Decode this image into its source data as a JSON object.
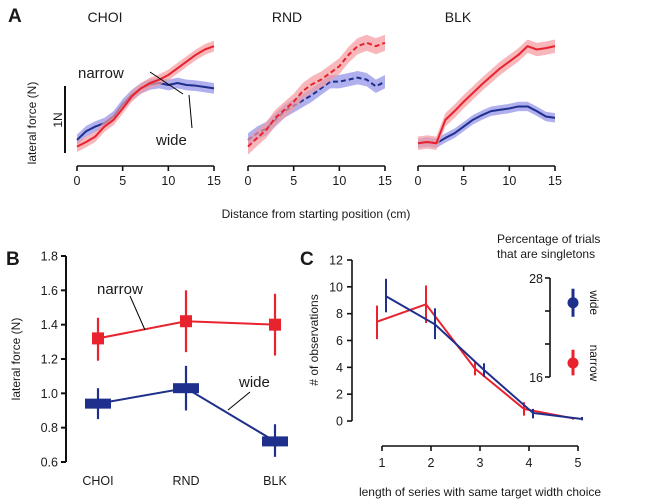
{
  "colors": {
    "narrow": "#e8232e",
    "wide": "#1f2f8c",
    "narrow_band": "#f59a9e",
    "wide_band": "#8f8fe8",
    "axis": "#111111"
  },
  "chart_data": [
    {
      "panel": "A",
      "type": "line",
      "ylabel": "lateral force (N)",
      "xlabel": "Distance from starting position (cm)",
      "scale_bar_label": "1N",
      "scale_bar_value": 1,
      "xlim": [
        0,
        15
      ],
      "xticks": [
        "0",
        "5",
        "10",
        "15"
      ],
      "annotations": [
        "narrow",
        "wide"
      ],
      "subplots": [
        {
          "title": "CHOI",
          "linestyle": "solid",
          "x": [
            0,
            1,
            2,
            3,
            4,
            5,
            6,
            7,
            8,
            9,
            10,
            11,
            12,
            13,
            14,
            15
          ],
          "series": [
            {
              "name": "narrow",
              "values": [
                0.05,
                0.12,
                0.2,
                0.35,
                0.45,
                0.62,
                0.8,
                0.92,
                1.0,
                1.05,
                1.12,
                1.22,
                1.32,
                1.42,
                1.5,
                1.55
              ],
              "band": 0.08
            },
            {
              "name": "wide",
              "values": [
                0.15,
                0.28,
                0.35,
                0.4,
                0.5,
                0.68,
                0.82,
                0.92,
                0.98,
                1.0,
                0.97,
                1.0,
                0.97,
                0.96,
                0.94,
                0.92
              ],
              "band": 0.08
            }
          ]
        },
        {
          "title": "RND",
          "linestyle": "dashed",
          "x": [
            0,
            1,
            2,
            3,
            4,
            5,
            6,
            7,
            8,
            9,
            10,
            11,
            12,
            13,
            14,
            15
          ],
          "series": [
            {
              "name": "narrow",
              "values": [
                0.05,
                0.18,
                0.3,
                0.48,
                0.6,
                0.72,
                0.88,
                0.98,
                1.05,
                1.15,
                1.25,
                1.42,
                1.55,
                1.6,
                1.55,
                1.6
              ],
              "band": 0.12
            },
            {
              "name": "wide",
              "values": [
                0.15,
                0.25,
                0.32,
                0.45,
                0.58,
                0.66,
                0.74,
                0.82,
                0.92,
                1.02,
                1.02,
                1.05,
                1.08,
                1.05,
                0.95,
                1.02
              ],
              "band": 0.1
            }
          ]
        },
        {
          "title": "BLK",
          "linestyle": "solid",
          "x": [
            0,
            1,
            2,
            3,
            4,
            5,
            6,
            7,
            8,
            9,
            10,
            11,
            12,
            13,
            14,
            15
          ],
          "series": [
            {
              "name": "narrow",
              "values": [
                0.1,
                0.12,
                0.1,
                0.45,
                0.58,
                0.72,
                0.85,
                0.98,
                1.1,
                1.22,
                1.32,
                1.42,
                1.55,
                1.5,
                1.52,
                1.55
              ],
              "band": 0.1
            },
            {
              "name": "wide",
              "values": [
                0.1,
                0.12,
                0.1,
                0.18,
                0.25,
                0.35,
                0.45,
                0.52,
                0.58,
                0.6,
                0.62,
                0.65,
                0.65,
                0.58,
                0.5,
                0.48
              ],
              "band": 0.07
            }
          ]
        }
      ]
    },
    {
      "panel": "B",
      "type": "line",
      "ylabel": "lateral force (N)",
      "categories": [
        "CHOI",
        "RND",
        "BLK"
      ],
      "ylim": [
        0.6,
        1.8
      ],
      "yticks": [
        "0.6",
        "0.8",
        "1.0",
        "1.2",
        "1.4",
        "1.6",
        "1.8"
      ],
      "annotations": [
        "narrow",
        "wide"
      ],
      "series": [
        {
          "name": "narrow",
          "values": [
            1.32,
            1.42,
            1.4
          ],
          "err_low": [
            1.19,
            1.24,
            1.22
          ],
          "err_high": [
            1.44,
            1.6,
            1.58
          ]
        },
        {
          "name": "wide",
          "values": [
            0.94,
            1.03,
            0.72
          ],
          "err_low": [
            0.85,
            0.9,
            0.63
          ],
          "err_high": [
            1.03,
            1.16,
            0.82
          ]
        }
      ]
    },
    {
      "panel": "C",
      "type": "line",
      "ylabel": "# of observations",
      "xlabel": "length of series with same target width choice",
      "x": [
        1,
        2,
        3,
        4,
        5
      ],
      "xticks": [
        "1",
        "2",
        "3",
        "4",
        "5"
      ],
      "ylim": [
        0,
        12
      ],
      "yticks": [
        "0",
        "2",
        "4",
        "6",
        "8",
        "10",
        "12"
      ],
      "series": [
        {
          "name": "narrow",
          "values": [
            7.4,
            8.7,
            3.9,
            0.9,
            0.2
          ],
          "err_low": [
            6.1,
            7.3,
            3.4,
            0.4,
            0.1
          ],
          "err_high": [
            8.6,
            10.1,
            4.4,
            1.4,
            0.3
          ]
        },
        {
          "name": "wide",
          "values": [
            9.3,
            7.2,
            3.8,
            0.6,
            0.15
          ],
          "err_low": [
            8.1,
            6.1,
            3.3,
            0.2,
            0.05
          ],
          "err_high": [
            10.6,
            8.4,
            4.3,
            0.9,
            0.3
          ]
        }
      ],
      "inset": {
        "title_line1": "Percentage of trials",
        "title_line2": "that are singletons",
        "ylim": [
          16,
          28
        ],
        "yticks_labeled": [
          "16",
          "28"
        ],
        "series": [
          {
            "name": "wide",
            "value": 25.0,
            "err_low": 23.3,
            "err_high": 26.7
          },
          {
            "name": "narrow",
            "value": 17.7,
            "err_low": 16.2,
            "err_high": 19.3
          }
        ]
      }
    }
  ]
}
